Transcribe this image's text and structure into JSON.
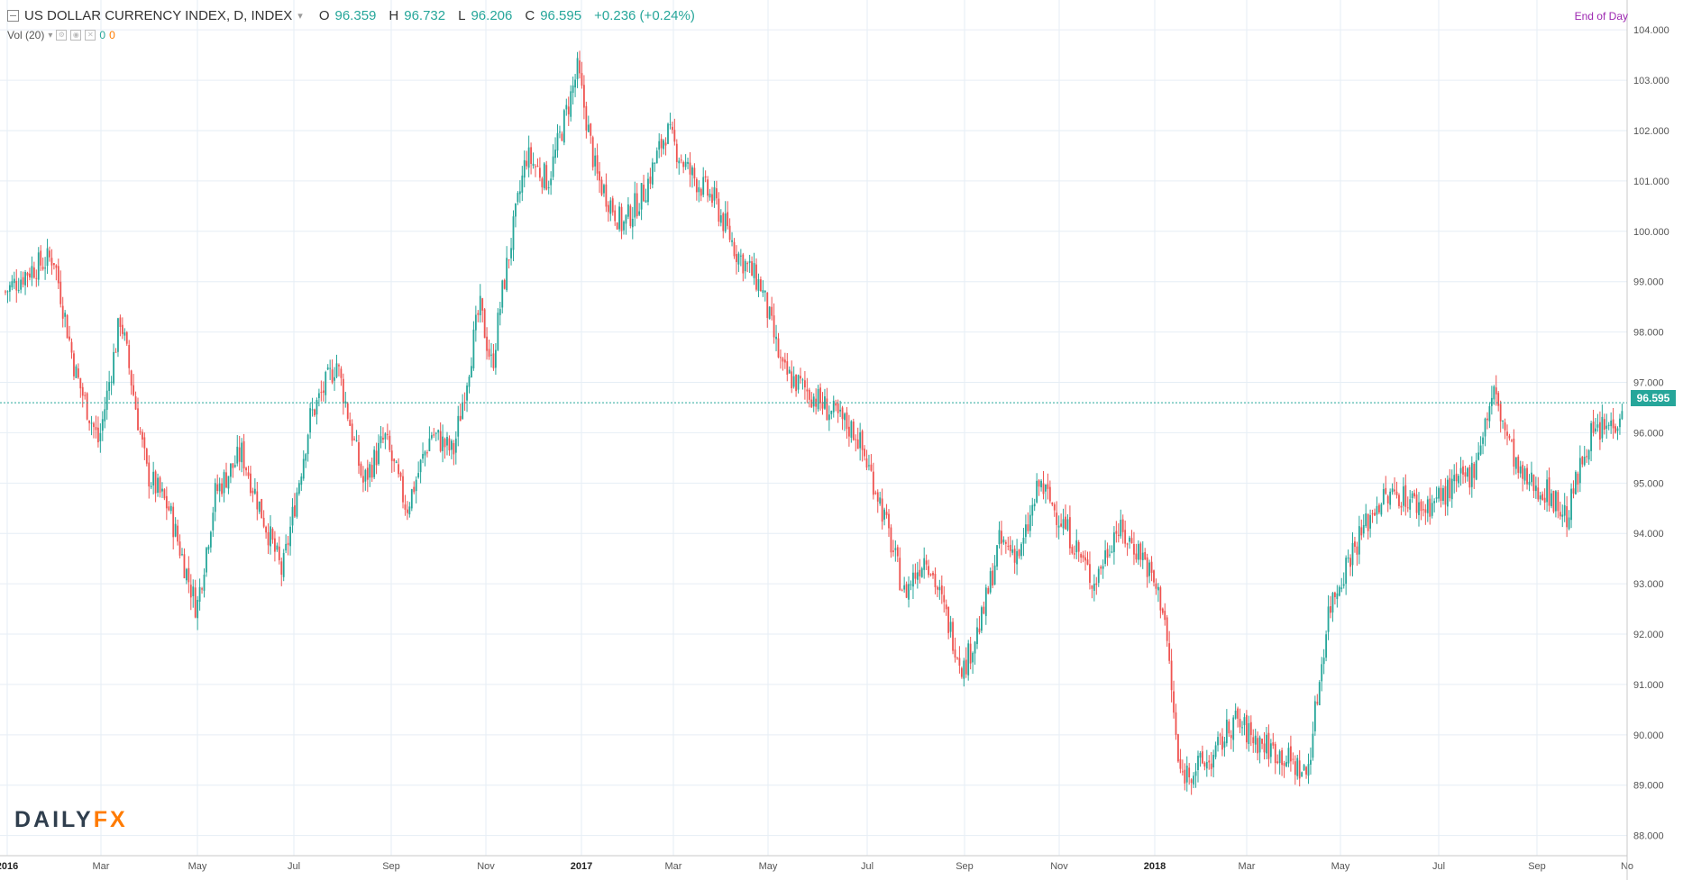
{
  "header": {
    "title": "US DOLLAR CURRENCY INDEX, D, INDEX",
    "o_label": "O",
    "o_value": "96.359",
    "h_label": "H",
    "h_value": "96.732",
    "l_label": "L",
    "l_value": "96.206",
    "c_label": "C",
    "c_value": "96.595",
    "change": "+0.236 (+0.24%)"
  },
  "volume": {
    "label": "Vol (20)",
    "v1": "0",
    "v2": "0"
  },
  "end_of_day": "End of Day",
  "last_price_tag": "96.595",
  "logo": {
    "part1": "DAILY",
    "part2": "FX"
  },
  "colors": {
    "up": "#26a69a",
    "down": "#ef5350",
    "grid": "#e6eef5",
    "last_line": "#26a69a"
  },
  "chart_data": {
    "type": "line",
    "title": "US DOLLAR CURRENCY INDEX, D, INDEX",
    "xlabel": "",
    "ylabel": "",
    "x_ticks": [
      "2016",
      "Mar",
      "May",
      "Jul",
      "Sep",
      "Nov",
      "2017",
      "Mar",
      "May",
      "Jul",
      "Sep",
      "Nov",
      "2018",
      "Mar",
      "May",
      "Jul",
      "Sep",
      "No"
    ],
    "y_ticks": [
      "104.000",
      "103.000",
      "102.000",
      "101.000",
      "100.000",
      "99.000",
      "98.000",
      "97.000",
      "96.000",
      "95.000",
      "94.000",
      "93.000",
      "92.000",
      "91.000",
      "90.000",
      "89.000",
      "88.000"
    ],
    "ylim": [
      87.6,
      104.2
    ],
    "last_price": 96.595,
    "series": [
      {
        "x": [
          "2016-01-01",
          "2016-01-15",
          "2016-02-01",
          "2016-02-15",
          "2016-03-01",
          "2016-03-15",
          "2016-04-01",
          "2016-04-15",
          "2016-05-03",
          "2016-05-15",
          "2016-06-01",
          "2016-06-15",
          "2016-06-27",
          "2016-07-15",
          "2016-08-01",
          "2016-08-18",
          "2016-09-01",
          "2016-09-15",
          "2016-10-01",
          "2016-10-15",
          "2016-11-01",
          "2016-11-09",
          "2016-11-15",
          "2016-12-01",
          "2016-12-15",
          "2017-01-03",
          "2017-01-15",
          "2017-02-01",
          "2017-02-15",
          "2017-03-01",
          "2017-03-15",
          "2017-04-01",
          "2017-04-15",
          "2017-05-01",
          "2017-05-15",
          "2017-06-01",
          "2017-06-15",
          "2017-07-01",
          "2017-07-15",
          "2017-08-01",
          "2017-08-15",
          "2017-09-08",
          "2017-09-20",
          "2017-10-01",
          "2017-10-15",
          "2017-10-27",
          "2017-11-15",
          "2017-12-01",
          "2017-12-15",
          "2018-01-01",
          "2018-01-15",
          "2018-01-25",
          "2018-02-15",
          "2018-03-01",
          "2018-03-15",
          "2018-04-01",
          "2018-04-17",
          "2018-05-01",
          "2018-05-15",
          "2018-06-01",
          "2018-06-15",
          "2018-07-01",
          "2018-07-15",
          "2018-08-01",
          "2018-08-15",
          "2018-09-01",
          "2018-09-20",
          "2018-10-01",
          "2018-10-15",
          "2018-11-01",
          "2018-11-06"
        ],
        "y": [
          98.8,
          99.2,
          99.5,
          97.2,
          95.8,
          98.3,
          95.2,
          94.5,
          92.5,
          94.8,
          95.6,
          94.3,
          93.2,
          96.3,
          97.4,
          95.0,
          95.9,
          94.5,
          96.0,
          95.6,
          98.5,
          97.3,
          98.7,
          101.5,
          101.0,
          103.2,
          101.1,
          100.1,
          100.8,
          102.0,
          101.2,
          100.6,
          99.6,
          98.9,
          97.2,
          96.8,
          96.4,
          96.0,
          94.8,
          92.8,
          93.6,
          91.3,
          92.3,
          93.8,
          93.6,
          95.0,
          94.0,
          93.0,
          94.1,
          93.6,
          92.5,
          89.2,
          89.5,
          90.3,
          89.9,
          89.6,
          89.2,
          92.5,
          93.6,
          94.6,
          94.8,
          94.5,
          94.8,
          95.2,
          96.8,
          95.1,
          94.8,
          94.3,
          95.9,
          96.2,
          96.6
        ]
      }
    ]
  }
}
